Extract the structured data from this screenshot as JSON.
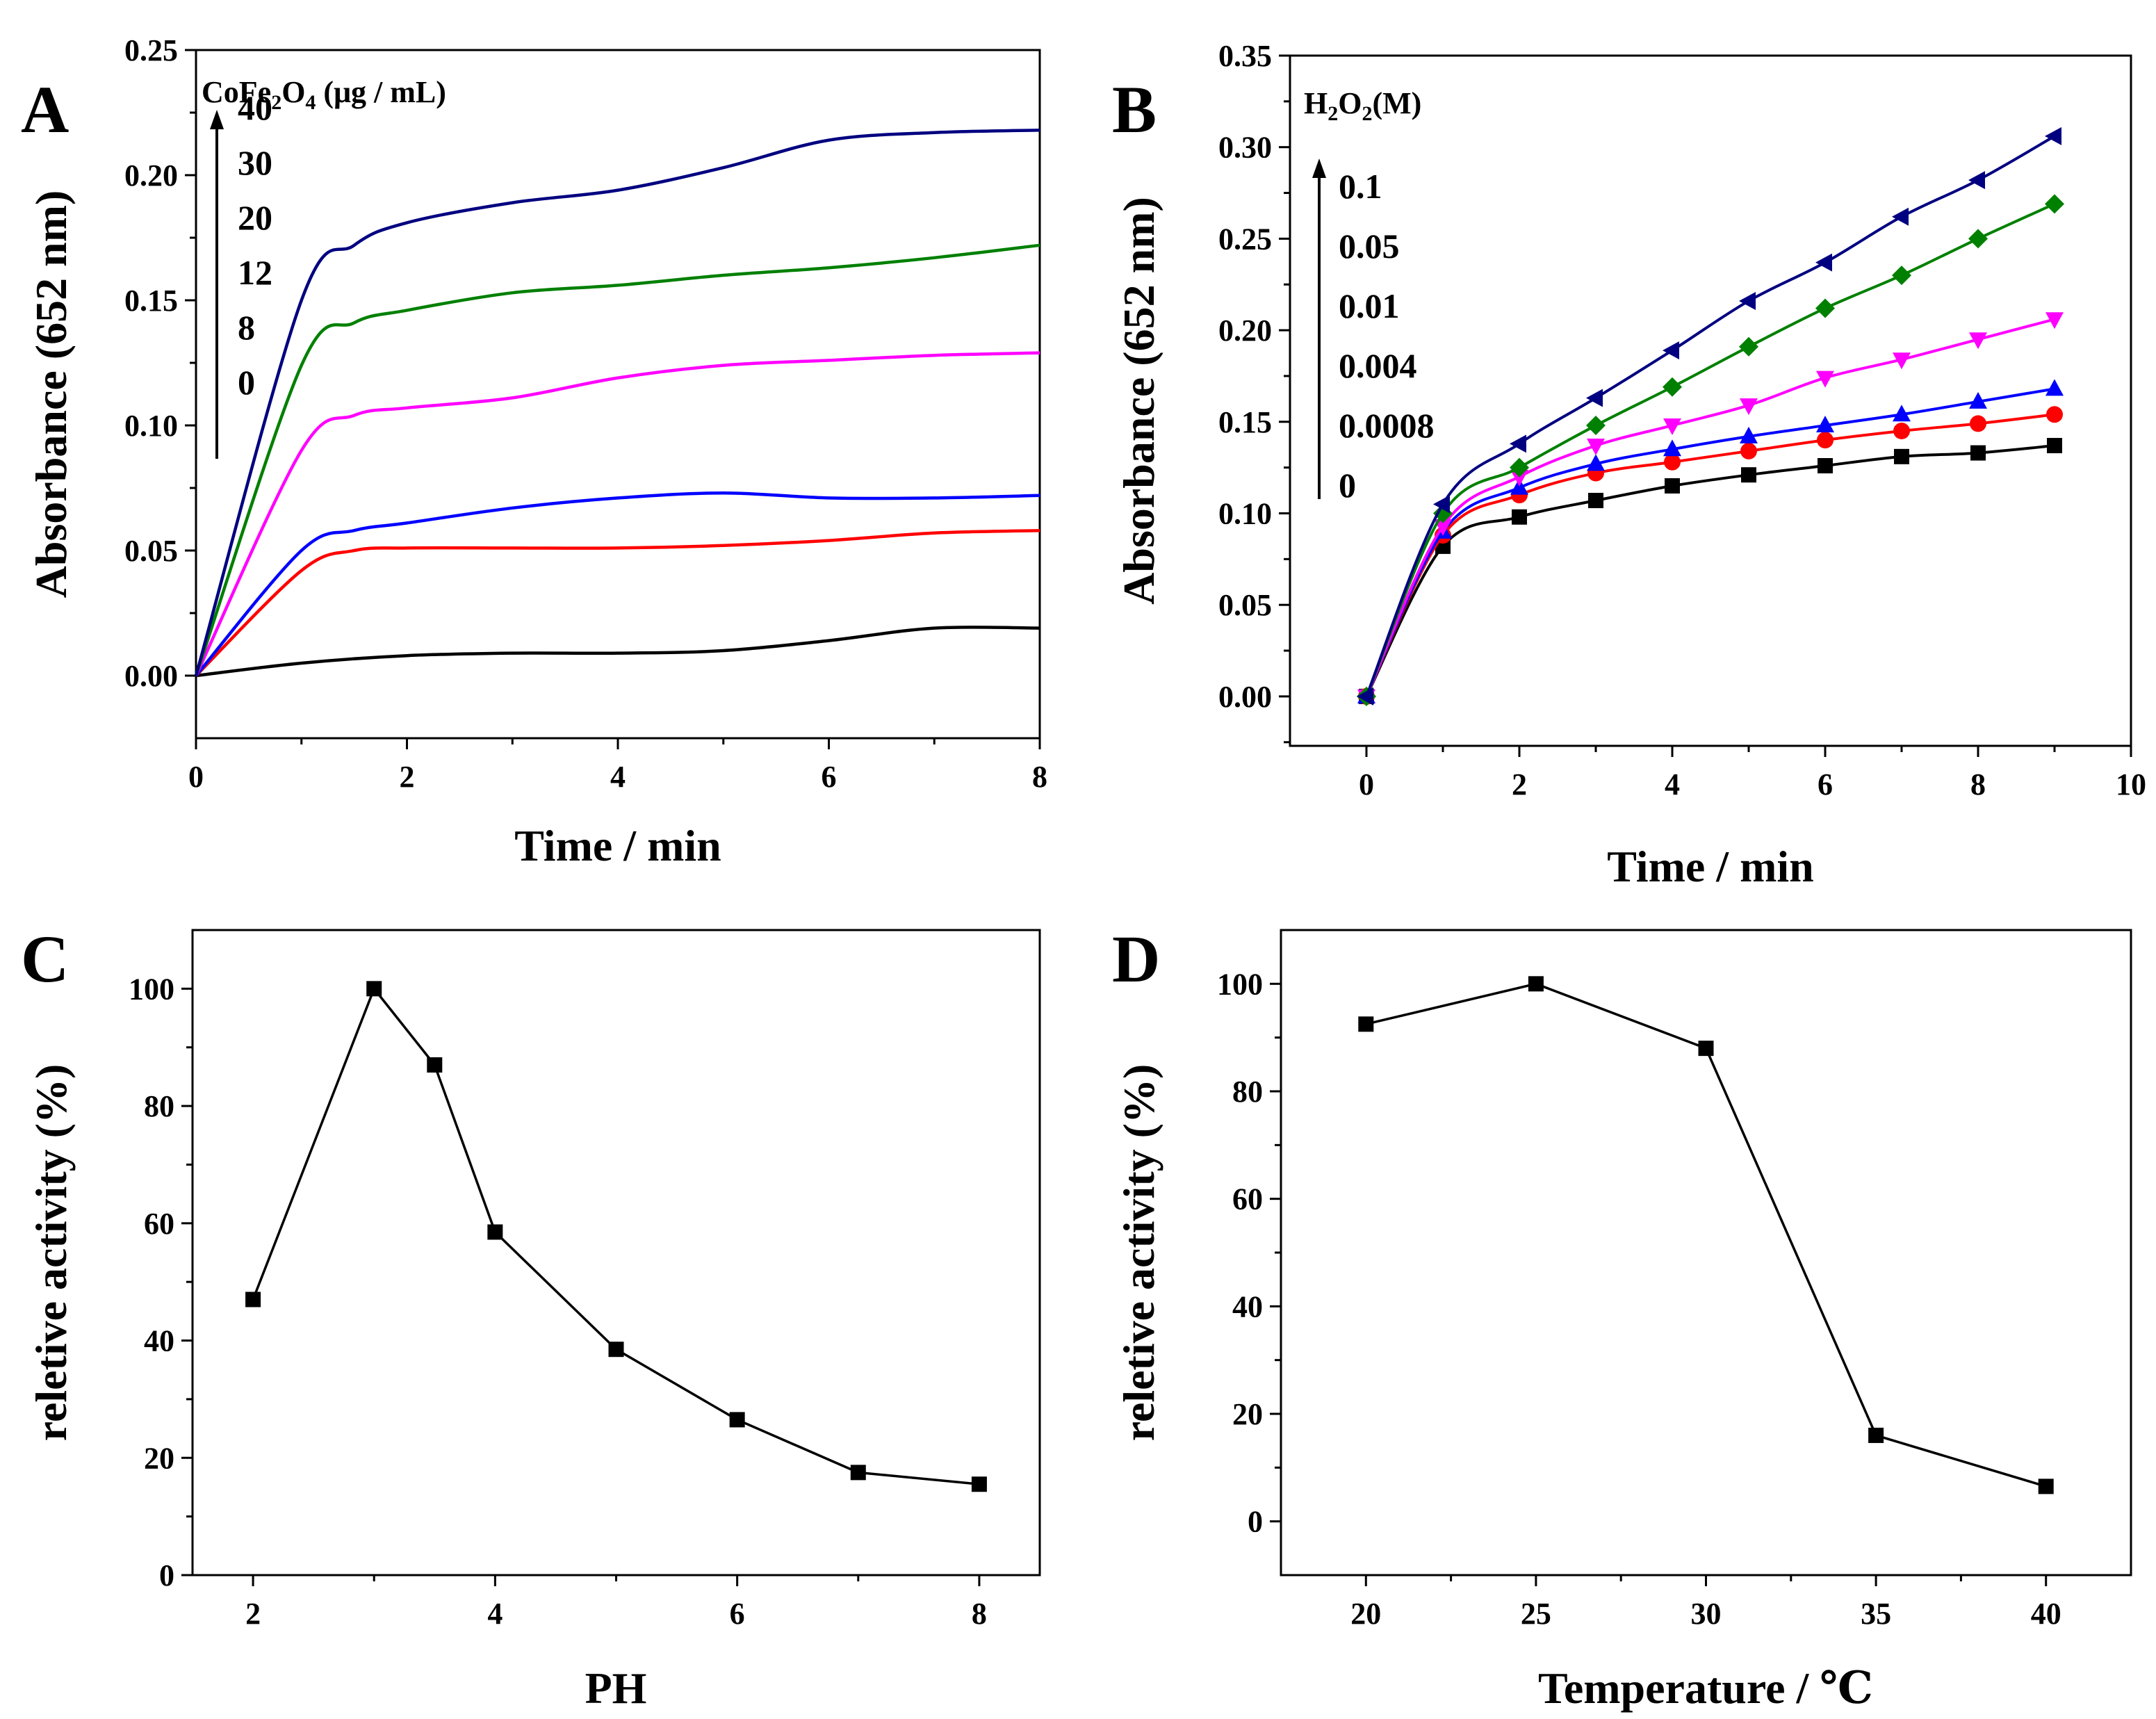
{
  "chart_data": [
    {
      "id": "A",
      "type": "line",
      "panel_label": "A",
      "xlabel": "Time / min",
      "ylabel": "Absorbance (652 nm)",
      "xlim": [
        0,
        8
      ],
      "ylim": [
        -0.025,
        0.25
      ],
      "xticks": [
        0,
        2,
        4,
        6,
        8
      ],
      "yticks": [
        0.0,
        0.05,
        0.1,
        0.15,
        0.2,
        0.25
      ],
      "ytick_labels": [
        "0.00",
        "0.05",
        "0.10",
        "0.15",
        "0.20",
        "0.25"
      ],
      "xtick_labels": [
        "0",
        "2",
        "4",
        "6",
        "8"
      ],
      "legend_title_parts": [
        "CoFe",
        "2",
        "O",
        "4",
        " (μg / mL)"
      ],
      "legend_labels": [
        "40",
        "30",
        "20",
        "12",
        "8",
        "0"
      ],
      "series": [
        {
          "name": "0",
          "color": "#000000",
          "x": [
            0,
            1,
            2,
            3,
            4,
            5,
            6,
            7,
            8
          ],
          "y": [
            0,
            0.005,
            0.008,
            0.009,
            0.009,
            0.01,
            0.014,
            0.019,
            0.019
          ]
        },
        {
          "name": "8",
          "color": "#ff0000",
          "x": [
            0,
            1,
            1.5,
            2,
            3,
            4,
            5,
            6,
            7,
            8
          ],
          "y": [
            0,
            0.042,
            0.05,
            0.051,
            0.051,
            0.051,
            0.052,
            0.054,
            0.057,
            0.058
          ]
        },
        {
          "name": "12",
          "color": "#0000ff",
          "x": [
            0,
            1,
            1.5,
            2,
            3,
            4,
            5,
            6,
            7,
            8
          ],
          "y": [
            0,
            0.05,
            0.058,
            0.061,
            0.067,
            0.071,
            0.073,
            0.071,
            0.071,
            0.072
          ]
        },
        {
          "name": "20",
          "color": "#ff00ff",
          "x": [
            0,
            1,
            1.5,
            2,
            3,
            4,
            5,
            6,
            7,
            8
          ],
          "y": [
            0,
            0.09,
            0.104,
            0.107,
            0.111,
            0.119,
            0.124,
            0.126,
            0.128,
            0.129
          ]
        },
        {
          "name": "30",
          "color": "#008000",
          "x": [
            0,
            1,
            1.5,
            2,
            3,
            4,
            5,
            6,
            7,
            8
          ],
          "y": [
            0,
            0.124,
            0.141,
            0.146,
            0.153,
            0.156,
            0.16,
            0.163,
            0.167,
            0.172
          ]
        },
        {
          "name": "40",
          "color": "#000080",
          "x": [
            0,
            1,
            1.5,
            2,
            3,
            4,
            5,
            6,
            7,
            8
          ],
          "y": [
            0,
            0.15,
            0.172,
            0.181,
            0.189,
            0.194,
            0.203,
            0.214,
            0.217,
            0.218
          ]
        }
      ]
    },
    {
      "id": "B",
      "type": "line",
      "panel_label": "B",
      "xlabel": "Time / min",
      "ylabel": "Absorbance (652 nm)",
      "xlim": [
        -1,
        10
      ],
      "ylim": [
        -0.027,
        0.35
      ],
      "xticks": [
        0,
        2,
        4,
        6,
        8,
        10
      ],
      "xtick_labels": [
        "0",
        "2",
        "4",
        "6",
        "8",
        "10"
      ],
      "yticks": [
        0.0,
        0.05,
        0.1,
        0.15,
        0.2,
        0.25,
        0.3,
        0.35
      ],
      "ytick_labels": [
        "0.00",
        "0.05",
        "0.10",
        "0.15",
        "0.20",
        "0.25",
        "0.30",
        "0.35"
      ],
      "legend_title_parts": [
        "H",
        "2",
        "O",
        "2",
        "(M)"
      ],
      "legend_labels": [
        "0.1",
        "0.05",
        "0.01",
        "0.004",
        "0.0008",
        "0"
      ],
      "series": [
        {
          "name": "0",
          "color": "#000000",
          "marker": "square",
          "x": [
            0,
            1,
            2,
            3,
            4,
            5,
            6,
            7,
            8,
            9
          ],
          "y": [
            0,
            0.082,
            0.098,
            0.107,
            0.115,
            0.121,
            0.126,
            0.131,
            0.133,
            0.137
          ]
        },
        {
          "name": "0.0008",
          "color": "#ff0000",
          "marker": "circle",
          "x": [
            0,
            1,
            2,
            3,
            4,
            5,
            6,
            7,
            8,
            9
          ],
          "y": [
            0,
            0.088,
            0.11,
            0.122,
            0.128,
            0.134,
            0.14,
            0.145,
            0.149,
            0.154
          ]
        },
        {
          "name": "0.004",
          "color": "#0000ff",
          "marker": "triangle-up",
          "x": [
            0,
            1,
            2,
            3,
            4,
            5,
            6,
            7,
            8,
            9
          ],
          "y": [
            0,
            0.09,
            0.114,
            0.127,
            0.135,
            0.142,
            0.148,
            0.154,
            0.161,
            0.168
          ]
        },
        {
          "name": "0.01",
          "color": "#ff00ff",
          "marker": "triangle-down",
          "x": [
            0,
            1,
            2,
            3,
            4,
            5,
            6,
            7,
            8,
            9
          ],
          "y": [
            0,
            0.093,
            0.12,
            0.137,
            0.148,
            0.159,
            0.174,
            0.184,
            0.195,
            0.206
          ]
        },
        {
          "name": "0.05",
          "color": "#008000",
          "marker": "diamond",
          "x": [
            0,
            1,
            2,
            3,
            4,
            5,
            6,
            7,
            8,
            9
          ],
          "y": [
            0,
            0.1,
            0.125,
            0.148,
            0.169,
            0.191,
            0.212,
            0.23,
            0.25,
            0.269
          ]
        },
        {
          "name": "0.1",
          "color": "#000080",
          "marker": "triangle-left",
          "x": [
            0,
            1,
            2,
            3,
            4,
            5,
            6,
            7,
            8,
            9
          ],
          "y": [
            0,
            0.105,
            0.138,
            0.163,
            0.189,
            0.216,
            0.237,
            0.262,
            0.282,
            0.306
          ]
        }
      ]
    },
    {
      "id": "C",
      "type": "line",
      "panel_label": "C",
      "xlabel": "PH",
      "ylabel": "reletive activity (%)",
      "xlim": [
        1.5,
        8.5
      ],
      "ylim": [
        0,
        110
      ],
      "xticks": [
        2,
        4,
        6,
        8
      ],
      "xtick_labels": [
        "2",
        "4",
        "6",
        "8"
      ],
      "yticks": [
        0,
        20,
        40,
        60,
        80,
        100
      ],
      "ytick_labels": [
        "0",
        "20",
        "40",
        "60",
        "80",
        "100"
      ],
      "series": [
        {
          "name": "activity",
          "color": "#000000",
          "marker": "square",
          "x": [
            2,
            3,
            3.5,
            4,
            5,
            6,
            7,
            8
          ],
          "y": [
            47,
            100,
            87,
            58.5,
            38.5,
            26.5,
            17.5,
            15.5
          ]
        }
      ]
    },
    {
      "id": "D",
      "type": "line",
      "panel_label": "D",
      "xlabel": "Temperature / ℃",
      "ylabel": "reletive activity (%)",
      "xlim": [
        17.5,
        42.5
      ],
      "ylim": [
        -10,
        110
      ],
      "xticks": [
        20,
        25,
        30,
        35,
        40
      ],
      "xtick_labels": [
        "20",
        "25",
        "30",
        "35",
        "40"
      ],
      "yticks": [
        0,
        20,
        40,
        60,
        80,
        100
      ],
      "ytick_labels": [
        "0",
        "20",
        "40",
        "60",
        "80",
        "100"
      ],
      "series": [
        {
          "name": "activity",
          "color": "#000000",
          "marker": "square",
          "x": [
            20,
            25,
            30,
            35,
            40
          ],
          "y": [
            92.5,
            100,
            88,
            16,
            6.5
          ]
        }
      ]
    }
  ]
}
